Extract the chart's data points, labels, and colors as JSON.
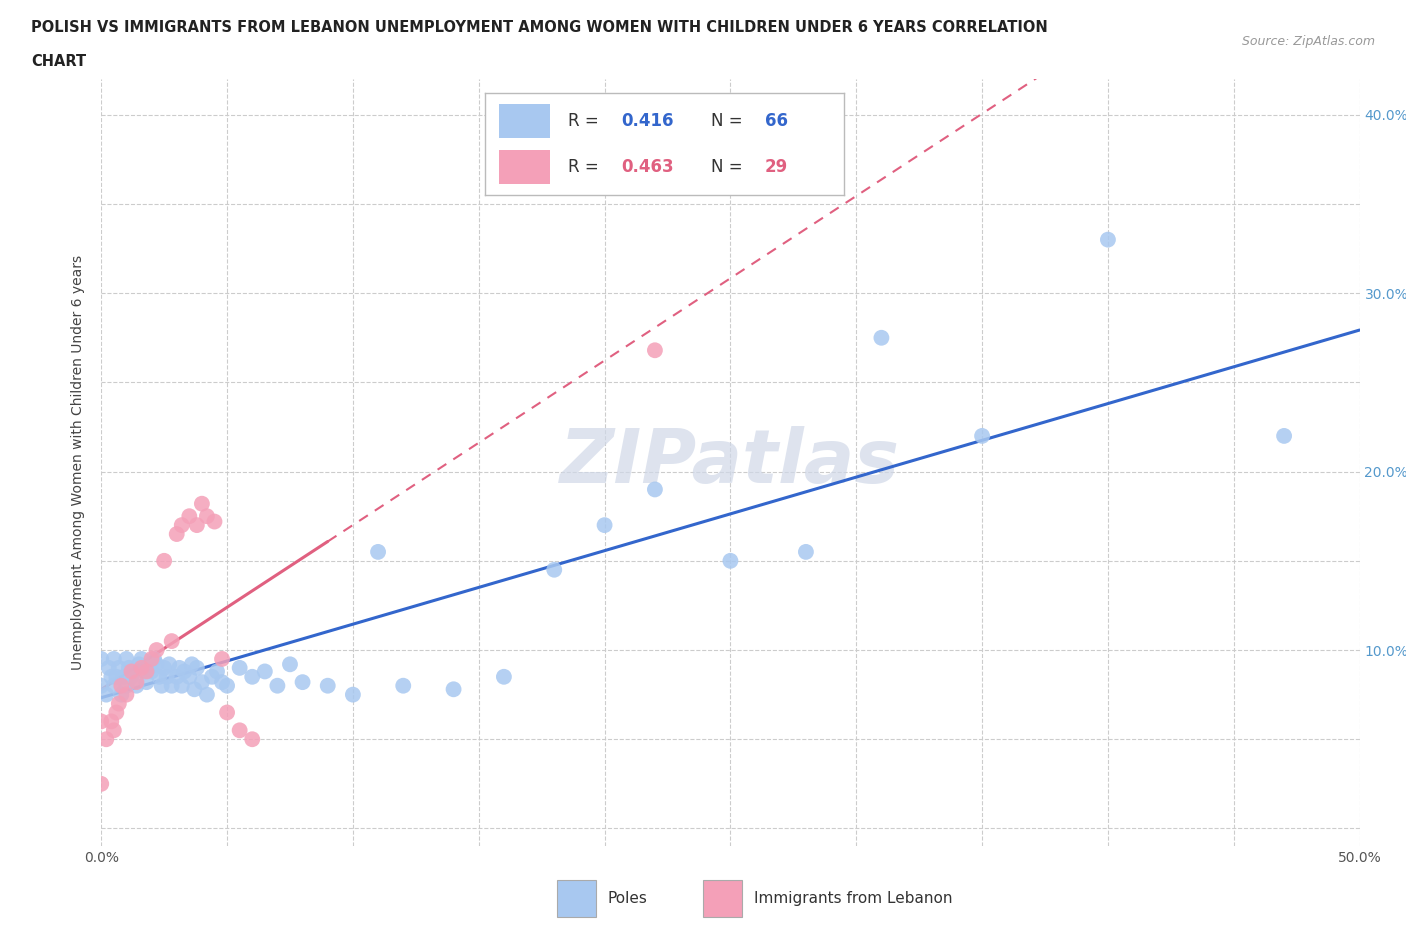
{
  "title_line1": "POLISH VS IMMIGRANTS FROM LEBANON UNEMPLOYMENT AMONG WOMEN WITH CHILDREN UNDER 6 YEARS CORRELATION",
  "title_line2": "CHART",
  "source": "Source: ZipAtlas.com",
  "ylabel": "Unemployment Among Women with Children Under 6 years",
  "xlim": [
    0.0,
    0.5
  ],
  "ylim": [
    -0.01,
    0.42
  ],
  "poles_color": "#a8c8f0",
  "lebanon_color": "#f4a0b8",
  "poles_line_color": "#3366cc",
  "lebanon_line_color": "#e06080",
  "watermark": "ZIPatlas",
  "legend_R_poles": "0.416",
  "legend_N_poles": "66",
  "legend_R_lebanon": "0.463",
  "legend_N_lebanon": "29",
  "poles_x": [
    0.0,
    0.0,
    0.002,
    0.003,
    0.004,
    0.005,
    0.005,
    0.006,
    0.007,
    0.008,
    0.009,
    0.01,
    0.01,
    0.011,
    0.012,
    0.013,
    0.014,
    0.015,
    0.016,
    0.017,
    0.018,
    0.019,
    0.02,
    0.021,
    0.022,
    0.023,
    0.024,
    0.025,
    0.026,
    0.027,
    0.028,
    0.03,
    0.031,
    0.032,
    0.033,
    0.035,
    0.036,
    0.037,
    0.038,
    0.04,
    0.042,
    0.044,
    0.046,
    0.048,
    0.05,
    0.055,
    0.06,
    0.065,
    0.07,
    0.075,
    0.08,
    0.09,
    0.1,
    0.11,
    0.12,
    0.14,
    0.16,
    0.18,
    0.2,
    0.22,
    0.25,
    0.28,
    0.31,
    0.35,
    0.4,
    0.47
  ],
  "poles_y": [
    0.08,
    0.095,
    0.075,
    0.09,
    0.085,
    0.08,
    0.095,
    0.085,
    0.09,
    0.075,
    0.085,
    0.08,
    0.095,
    0.09,
    0.085,
    0.088,
    0.08,
    0.092,
    0.095,
    0.088,
    0.082,
    0.09,
    0.088,
    0.095,
    0.092,
    0.085,
    0.08,
    0.09,
    0.085,
    0.092,
    0.08,
    0.085,
    0.09,
    0.08,
    0.088,
    0.085,
    0.092,
    0.078,
    0.09,
    0.082,
    0.075,
    0.085,
    0.088,
    0.082,
    0.08,
    0.09,
    0.085,
    0.088,
    0.08,
    0.092,
    0.082,
    0.08,
    0.075,
    0.155,
    0.08,
    0.078,
    0.085,
    0.145,
    0.17,
    0.19,
    0.15,
    0.155,
    0.275,
    0.22,
    0.33,
    0.22
  ],
  "lebanon_x": [
    0.0,
    0.0,
    0.002,
    0.004,
    0.005,
    0.006,
    0.007,
    0.008,
    0.01,
    0.012,
    0.014,
    0.016,
    0.018,
    0.02,
    0.022,
    0.025,
    0.028,
    0.03,
    0.032,
    0.035,
    0.038,
    0.04,
    0.042,
    0.045,
    0.048,
    0.05,
    0.055,
    0.06,
    0.22
  ],
  "lebanon_y": [
    0.06,
    0.025,
    0.05,
    0.06,
    0.055,
    0.065,
    0.07,
    0.08,
    0.075,
    0.088,
    0.082,
    0.09,
    0.088,
    0.095,
    0.1,
    0.15,
    0.105,
    0.165,
    0.17,
    0.175,
    0.17,
    0.182,
    0.175,
    0.172,
    0.095,
    0.065,
    0.055,
    0.05,
    0.268
  ]
}
